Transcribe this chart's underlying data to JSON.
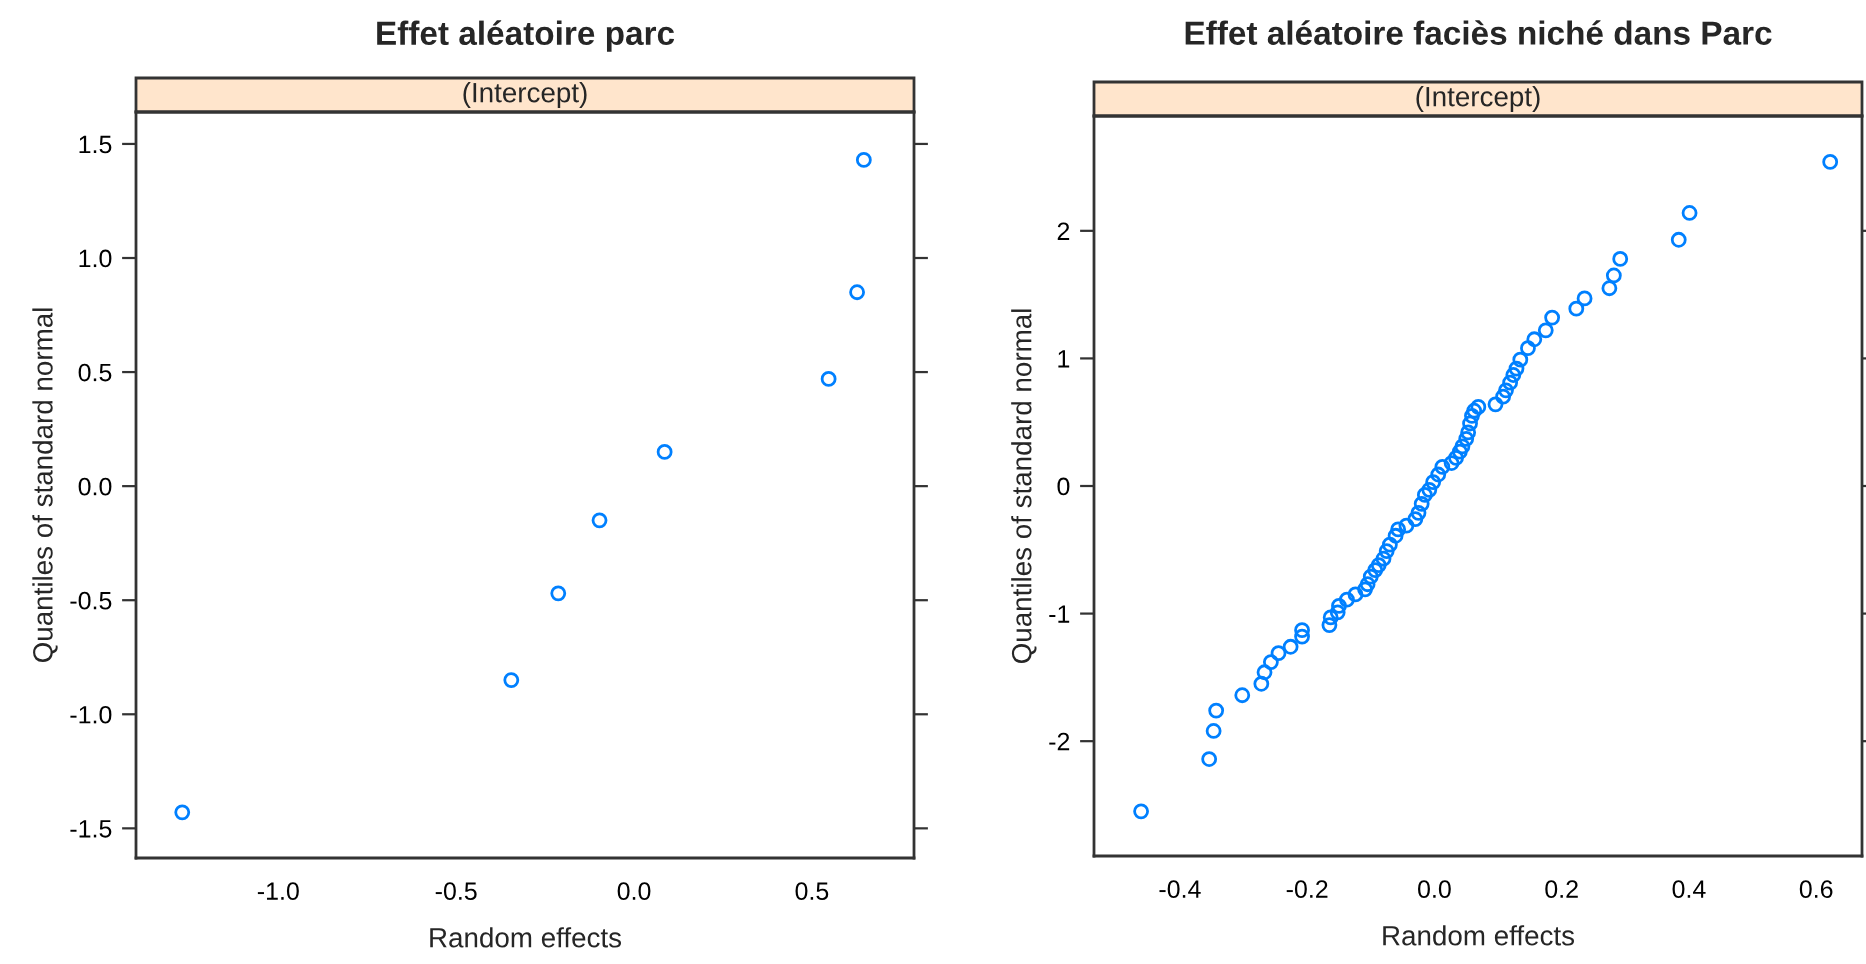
{
  "chart_data": [
    {
      "type": "scatter",
      "title": "Effet aléatoire parc",
      "subtitle": "(Intercept)",
      "xlabel": "Random effects",
      "ylabel": "Quantiles of standard normal",
      "marker": "circle",
      "series": [
        {
          "color": "#0080ff",
          "x": [
            -1.27,
            -0.345,
            -0.213,
            -0.097,
            0.086,
            0.547,
            0.627,
            0.646
          ],
          "values": [
            -1.43,
            -0.85,
            -0.47,
            -0.15,
            0.15,
            0.47,
            0.85,
            1.43
          ]
        }
      ],
      "xlim": [
        -1.4,
        0.787
      ],
      "ylim": [
        -1.63,
        1.64
      ],
      "xticks": [
        {
          "value": -1.0,
          "label": "-1.0"
        },
        {
          "value": -0.5,
          "label": "-0.5"
        },
        {
          "value": 0.0,
          "label": "0.0"
        },
        {
          "value": 0.5,
          "label": "0.5"
        }
      ],
      "yticks": [
        {
          "value": -1.5,
          "label": "-1.5"
        },
        {
          "value": -1.0,
          "label": "-1.0"
        },
        {
          "value": -0.5,
          "label": "-0.5"
        },
        {
          "value": 0.0,
          "label": "0.0"
        },
        {
          "value": 0.5,
          "label": "0.5"
        },
        {
          "value": 1.0,
          "label": "1.0"
        },
        {
          "value": 1.5,
          "label": "1.5"
        }
      ]
    },
    {
      "type": "scatter",
      "title": "Effet aléatoire faciès niché dans Parc",
      "subtitle": "(Intercept)",
      "xlabel": "Random effects",
      "ylabel": "Quantiles of standard normal",
      "marker": "circle",
      "series": [
        {
          "color": "#0080ff",
          "x": [
            -0.461,
            -0.354,
            -0.347,
            -0.343,
            -0.302,
            -0.272,
            -0.267,
            -0.257,
            -0.245,
            -0.226,
            -0.208,
            -0.208,
            -0.165,
            -0.163,
            -0.152,
            -0.15,
            -0.1375,
            -0.124,
            -0.109,
            -0.105,
            -0.1,
            -0.093,
            -0.0875,
            -0.08,
            -0.075,
            -0.07,
            -0.061,
            -0.057,
            -0.044,
            -0.03,
            -0.025,
            -0.02,
            -0.015,
            -0.008,
            -0.002,
            0.006,
            0.0125,
            0.027,
            0.034,
            0.04,
            0.044,
            0.05,
            0.053,
            0.056,
            0.059,
            0.0625,
            0.069,
            0.096,
            0.108,
            0.1125,
            0.119,
            0.124,
            0.129,
            0.135,
            0.147,
            0.157,
            0.175,
            0.185,
            0.223,
            0.236,
            0.275,
            0.282,
            0.292,
            0.384,
            0.401,
            0.622
          ],
          "values": [
            -2.55,
            -2.14,
            -1.92,
            -1.76,
            -1.64,
            -1.55,
            -1.46,
            -1.38,
            -1.31,
            -1.26,
            -1.18,
            -1.13,
            -1.09,
            -1.03,
            -0.99,
            -0.94,
            -0.89,
            -0.85,
            -0.81,
            -0.77,
            -0.71,
            -0.66,
            -0.62,
            -0.57,
            -0.51,
            -0.46,
            -0.39,
            -0.34,
            -0.31,
            -0.26,
            -0.21,
            -0.14,
            -0.07,
            -0.03,
            0.03,
            0.09,
            0.15,
            0.18,
            0.22,
            0.27,
            0.31,
            0.37,
            0.42,
            0.49,
            0.55,
            0.59,
            0.62,
            0.64,
            0.7,
            0.75,
            0.81,
            0.87,
            0.92,
            0.99,
            1.08,
            1.15,
            1.22,
            1.32,
            1.39,
            1.47,
            1.55,
            1.65,
            1.78,
            1.93,
            2.14,
            2.54
          ]
        }
      ],
      "xlim": [
        -0.535,
        0.672
      ],
      "ylim": [
        -2.9,
        2.9
      ],
      "xticks": [
        {
          "value": -0.4,
          "label": "-0.4"
        },
        {
          "value": -0.2,
          "label": "-0.2"
        },
        {
          "value": 0.0,
          "label": "0.0"
        },
        {
          "value": 0.2,
          "label": "0.2"
        },
        {
          "value": 0.4,
          "label": "0.4"
        },
        {
          "value": 0.6,
          "label": "0.6"
        }
      ],
      "yticks": [
        {
          "value": -2,
          "label": "-2"
        },
        {
          "value": -1,
          "label": "-1"
        },
        {
          "value": 0,
          "label": "0"
        },
        {
          "value": 1,
          "label": "1"
        },
        {
          "value": 2,
          "label": "2"
        }
      ]
    }
  ]
}
